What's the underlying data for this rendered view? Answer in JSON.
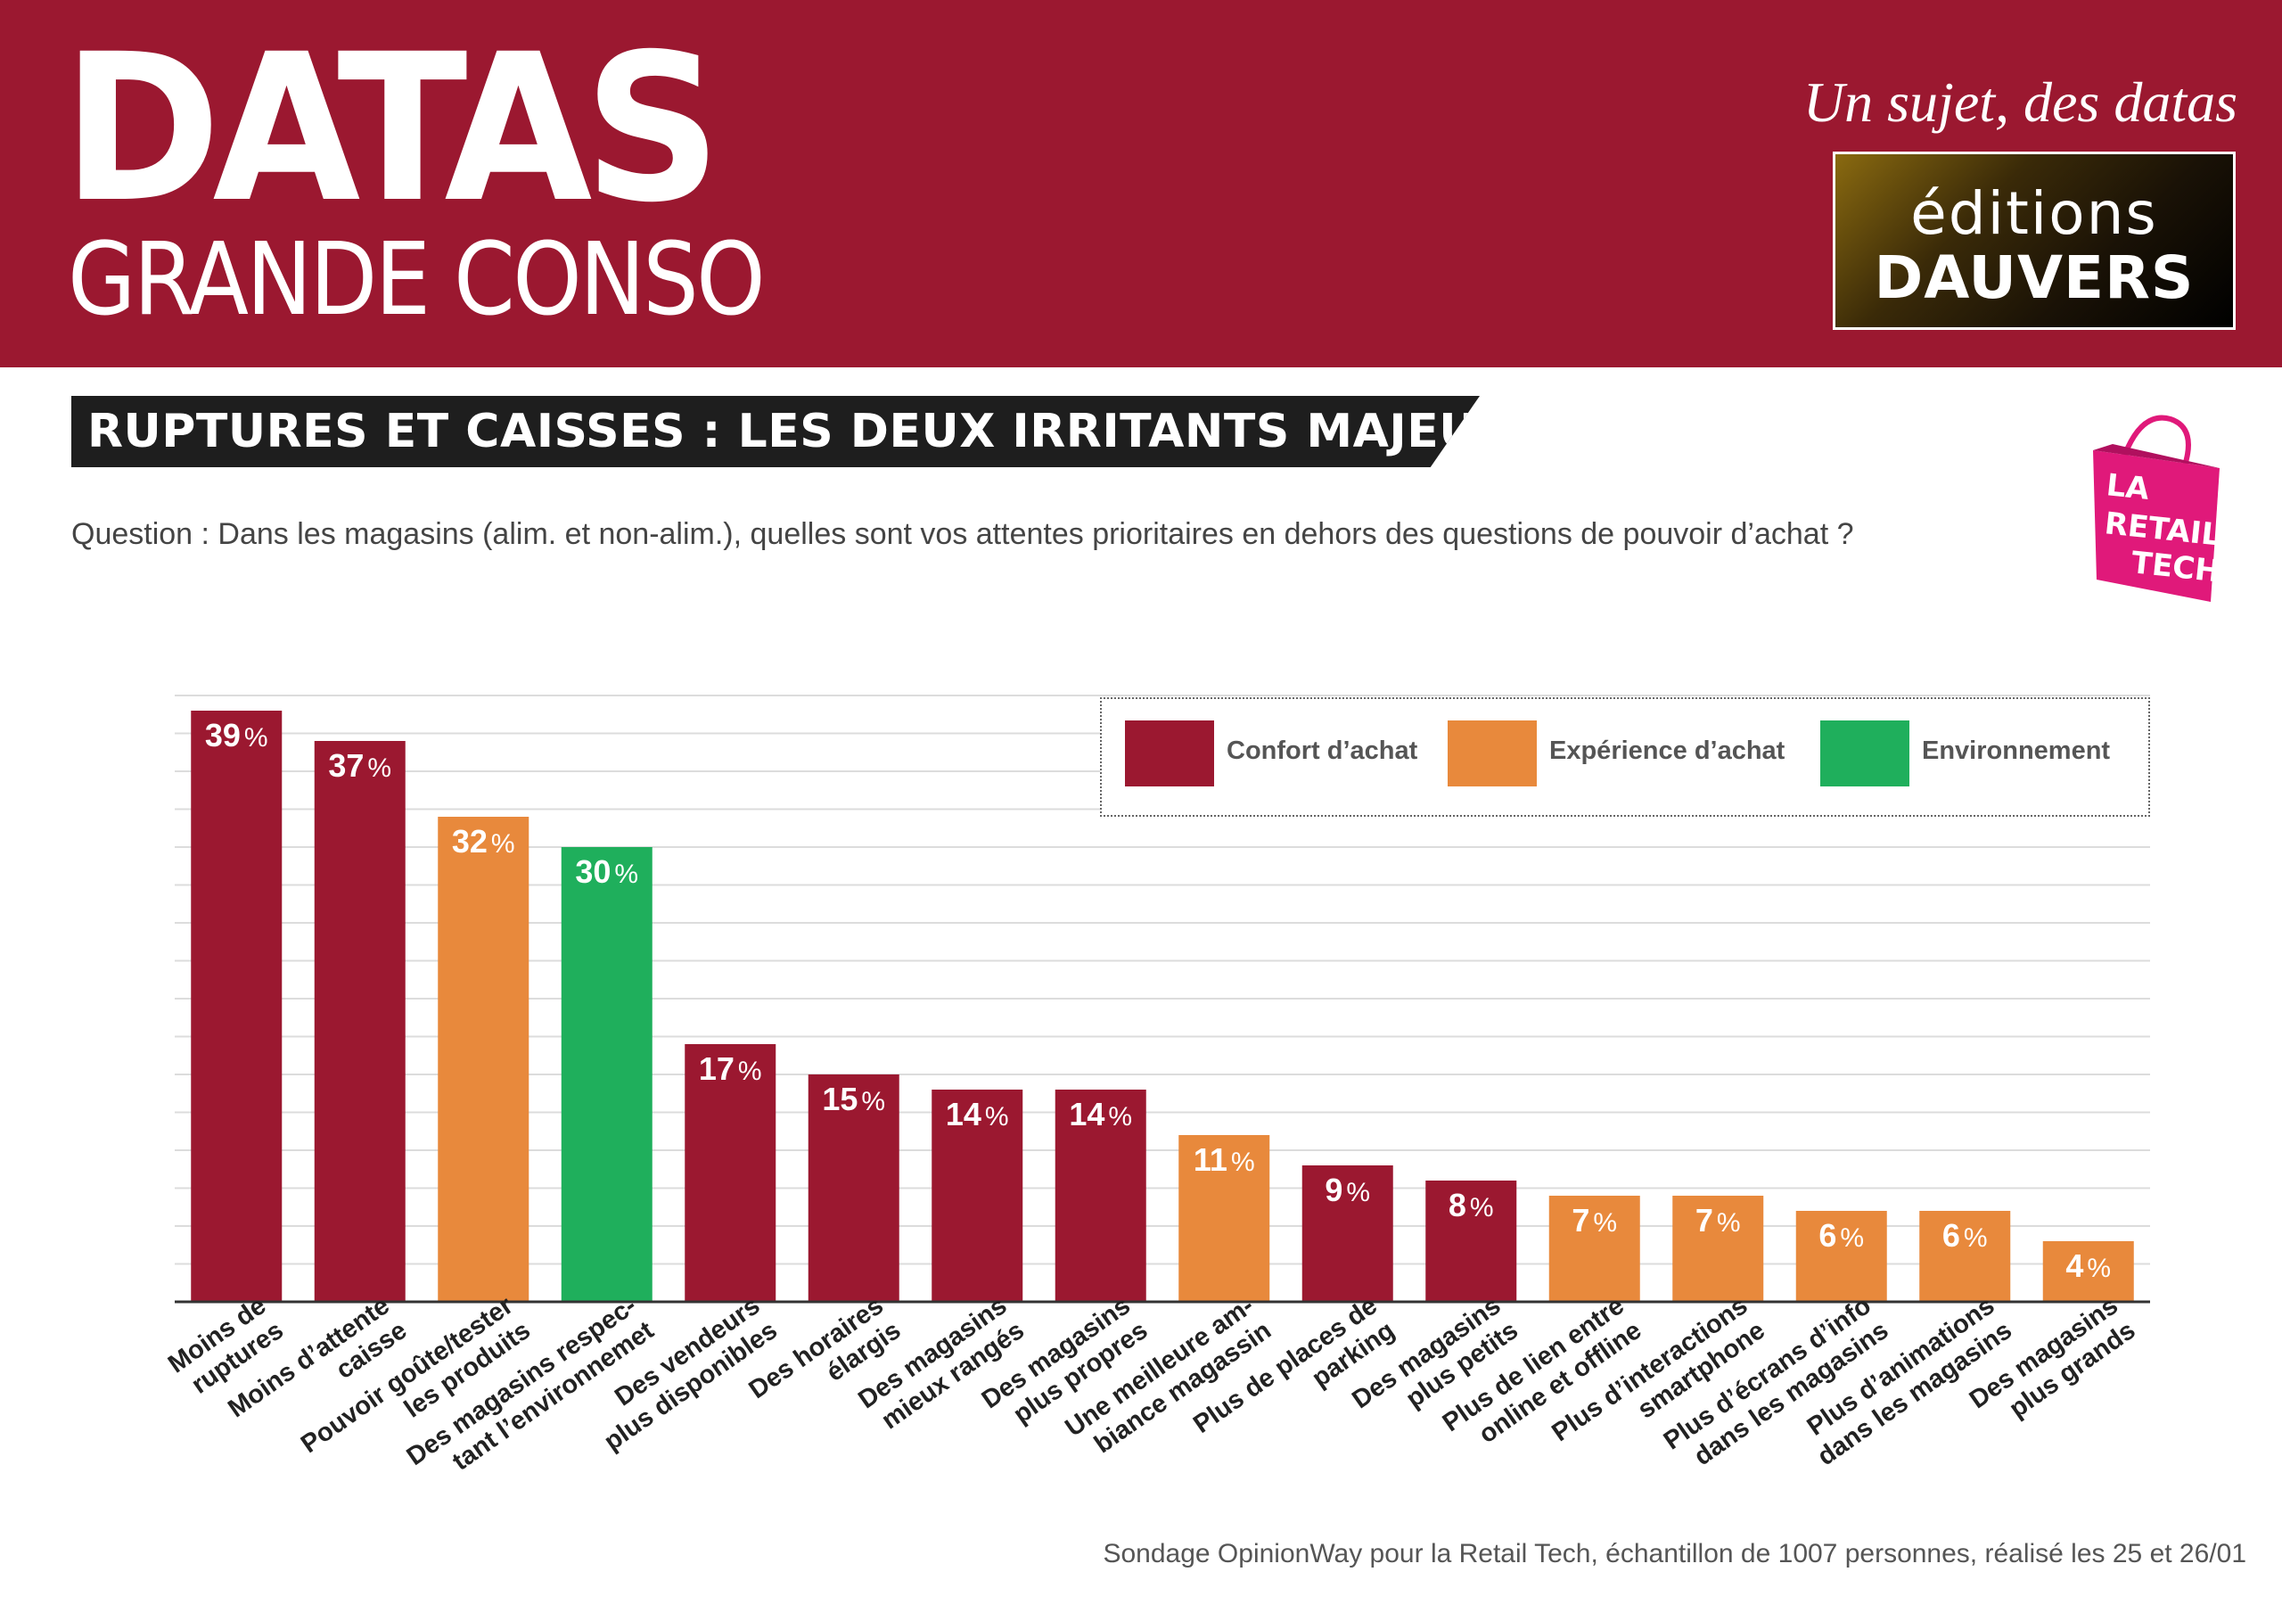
{
  "header": {
    "brand_main": "DATAS",
    "brand_sub": "GRANDE CONSO",
    "tagline": "Un sujet, des datas",
    "publisher_line1": "éditions",
    "publisher_line2": "DAUVERS"
  },
  "title": "RUPTURES ET CAISSES : LES DEUX IRRITANTS MAJEURS",
  "question": "Question : Dans les magasins (alim. et non-alim.), quelles sont vos attentes prioritaires en dehors des questions de pouvoir d’achat ?",
  "retail_logo": {
    "line1": "LA",
    "line2": "RETAIL",
    "line3": "TECH"
  },
  "source": "Sondage OpinionWay pour la Retail Tech, échantillon de 1007 personnes, réalisé les 25 et 26/01",
  "colors": {
    "header_bg": "#9b1830",
    "Confort d’achat": "#9b1830",
    "Expérience d’achat": "#e8893c",
    "Environnement": "#1faf5c",
    "grid": "#dcdcdc",
    "axis": "#333333"
  },
  "chart_data": {
    "type": "bar",
    "unit": "%",
    "ylim": [
      0,
      40
    ],
    "grid": true,
    "legend_position": "top-right",
    "legend": [
      "Confort d’achat",
      "Expérience d’achat",
      "Environnement"
    ],
    "categories": [
      "Moins de ruptures",
      "Moins d’attente caisse",
      "Pouvoir goûte/tester les produits",
      "Des magasins respec-tant l’environnemet",
      "Des vendeurs plus disponibles",
      "Des horaires élargis",
      "Des magasins mieux rangés",
      "Des magasins plus propres",
      "Une meilleure am-biance magassin",
      "Plus de places de parking",
      "Des magasins plus petits",
      "Plus de lien entre online et offline",
      "Plus d’interactions smartphone",
      "Plus d’écrans d’info dans les magasins",
      "Plus d’animations dans les magasins",
      "Des magasins plus grands"
    ],
    "label_lines": [
      [
        "Moins de",
        "ruptures"
      ],
      [
        "Moins d’attente",
        "caisse"
      ],
      [
        "Pouvoir goûte/tester",
        "les produits"
      ],
      [
        "Des magasins respec-",
        "tant l’environnemet"
      ],
      [
        "Des vendeurs",
        "plus disponibles"
      ],
      [
        "Des horaires",
        "élargis"
      ],
      [
        "Des magasins",
        "mieux rangés"
      ],
      [
        "Des magasins",
        "plus propres"
      ],
      [
        "Une meilleure am-",
        "biance magassin"
      ],
      [
        "Plus de places de",
        "parking"
      ],
      [
        "Des magasins",
        "plus petits"
      ],
      [
        "Plus de lien entre",
        "online et offline"
      ],
      [
        "Plus d’interactions",
        "smartphone"
      ],
      [
        "Plus d’écrans d’info",
        "dans les magasins"
      ],
      [
        "Plus d’animations",
        "dans les magasins"
      ],
      [
        "Des magasins",
        "plus grands"
      ]
    ],
    "values": [
      39,
      37,
      32,
      30,
      17,
      15,
      14,
      14,
      11,
      9,
      8,
      7,
      7,
      6,
      6,
      4
    ],
    "groups": [
      "Confort d’achat",
      "Confort d’achat",
      "Expérience d’achat",
      "Environnement",
      "Confort d’achat",
      "Confort d’achat",
      "Confort d’achat",
      "Confort d’achat",
      "Expérience d’achat",
      "Confort d’achat",
      "Confort d’achat",
      "Expérience d’achat",
      "Expérience d’achat",
      "Expérience d’achat",
      "Expérience d’achat",
      "Expérience d’achat"
    ]
  }
}
